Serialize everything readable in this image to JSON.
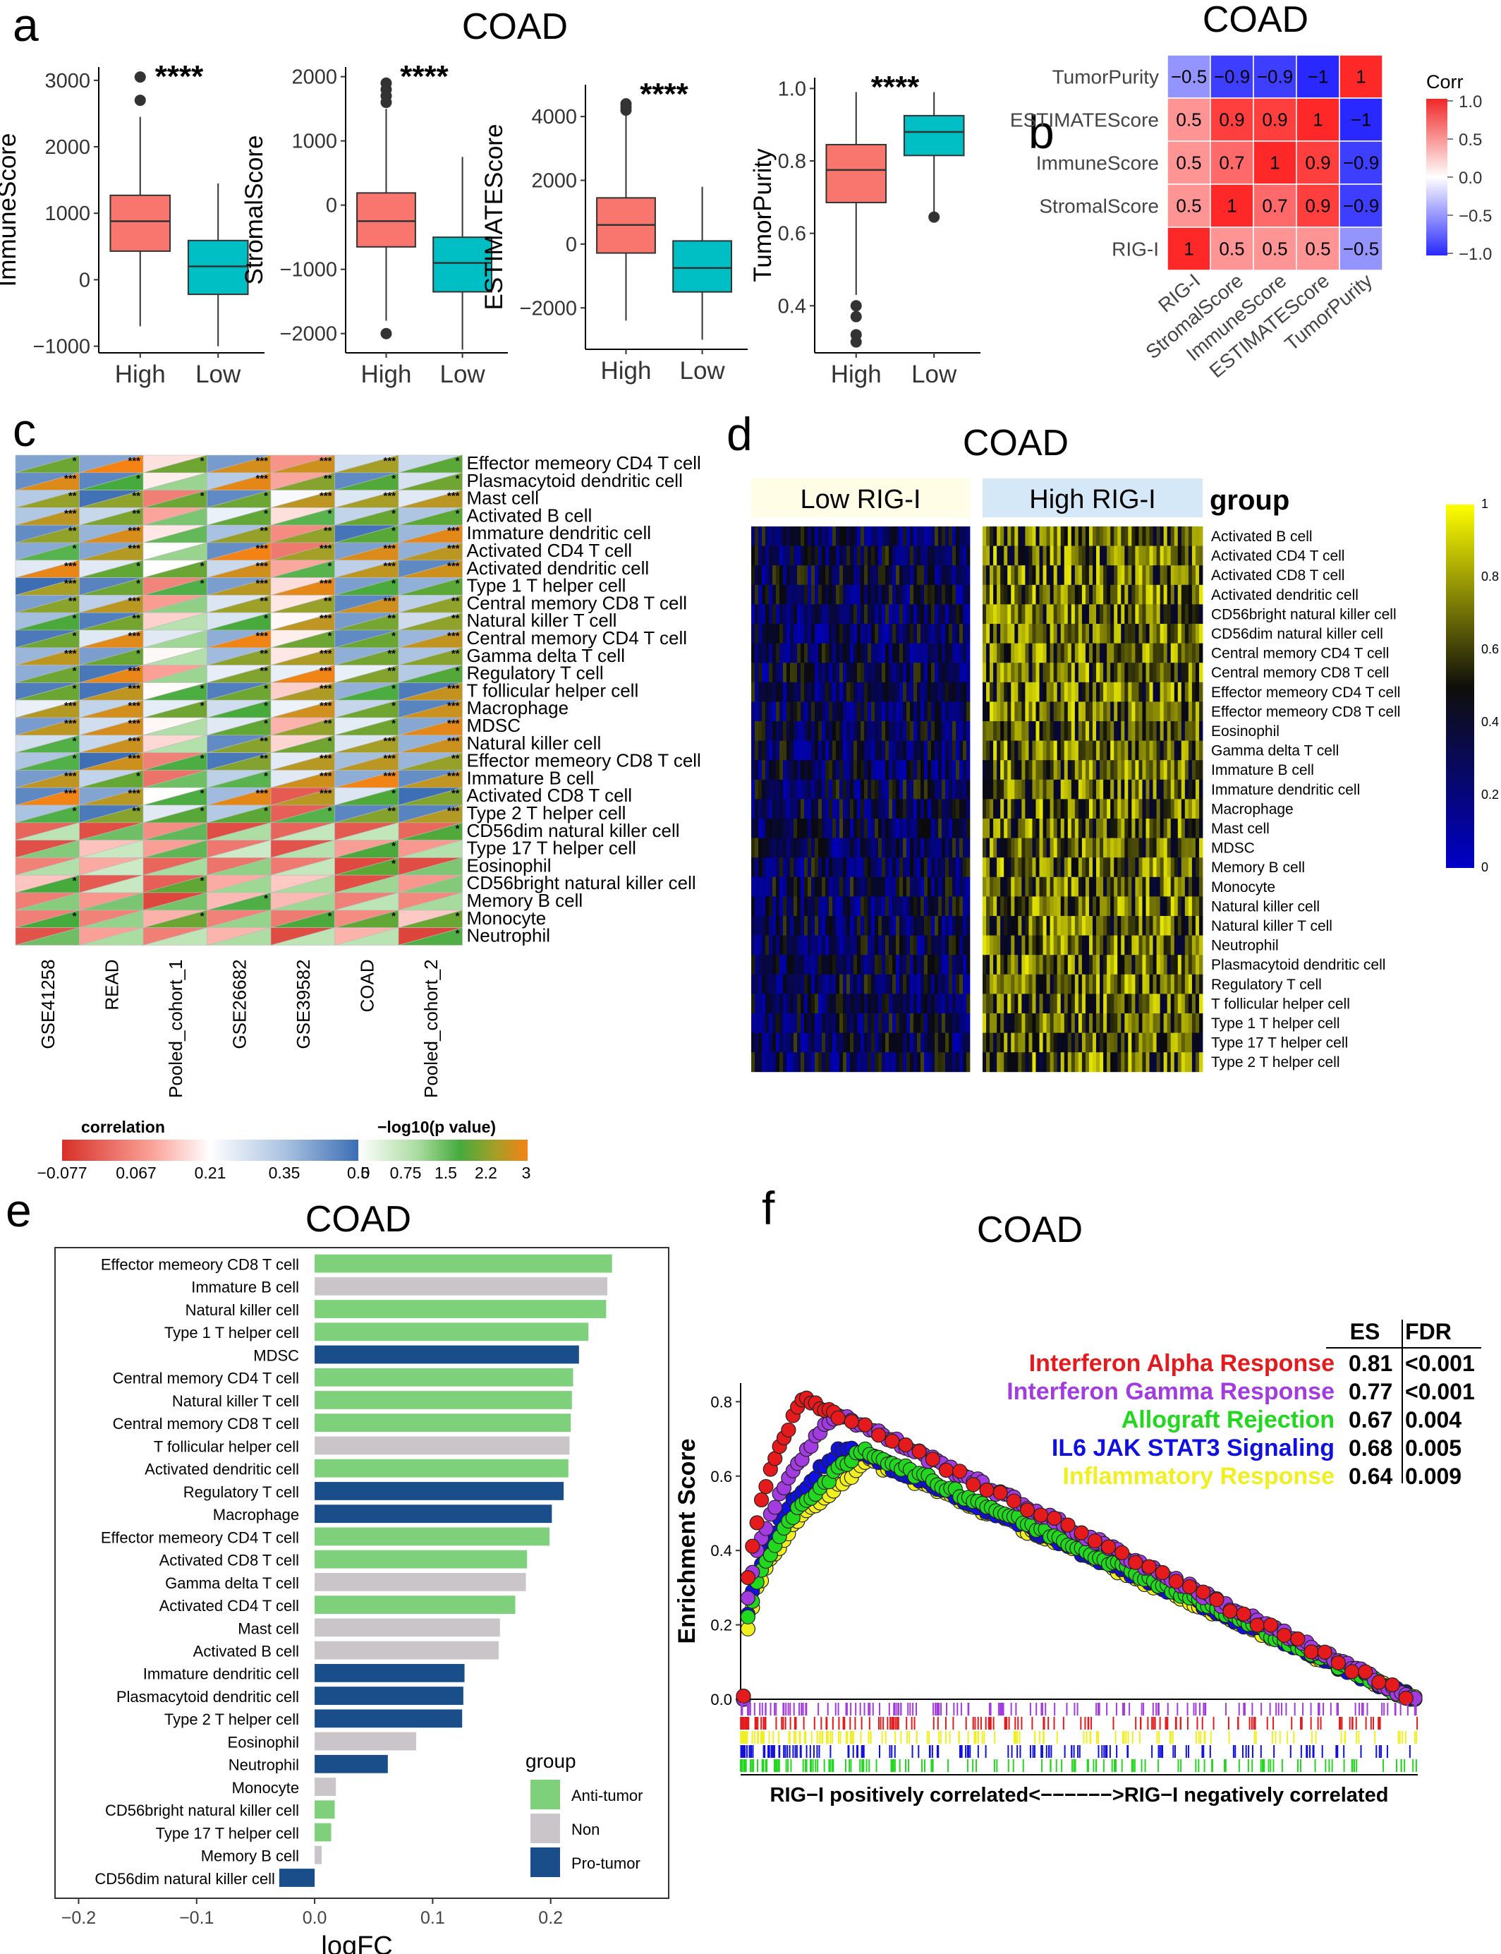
{
  "panels": {
    "a": "a",
    "b": "b",
    "c": "c",
    "d": "d",
    "e": "e",
    "f": "f"
  },
  "panel_a": {
    "title": "COAD",
    "categories": [
      "High",
      "Low"
    ],
    "colors": [
      "#F8766D",
      "#00BFC4"
    ],
    "sig": "****",
    "plots": [
      {
        "ylabel": "ImmuneScore",
        "ylim": [
          -1100,
          3200
        ],
        "ticks": [
          -1000,
          0,
          1000,
          2000,
          3000
        ],
        "tick_labels": [
          "−1000",
          "0",
          "1000",
          "2000",
          "3000"
        ],
        "boxes": [
          {
            "q1": 430,
            "med": 880,
            "q3": 1270,
            "lo": -700,
            "hi": 2450
          },
          {
            "q1": -220,
            "med": 200,
            "q3": 590,
            "lo": -1000,
            "hi": 1450
          }
        ],
        "outliers": [
          [
            3050,
            2700
          ],
          []
        ]
      },
      {
        "ylabel": "StromalScore",
        "ylim": [
          -2300,
          2150
        ],
        "ticks": [
          -2000,
          -1000,
          0,
          1000,
          2000
        ],
        "tick_labels": [
          "−2000",
          "−1000",
          "0",
          "1000",
          "2000"
        ],
        "boxes": [
          {
            "q1": -650,
            "med": -250,
            "q3": 190,
            "lo": -1800,
            "hi": 1500
          },
          {
            "q1": -1350,
            "med": -900,
            "q3": -500,
            "lo": -2250,
            "hi": 750
          }
        ],
        "outliers": [
          [
            -2000,
            1900,
            1800,
            1700,
            1600
          ],
          []
        ]
      },
      {
        "ylabel": "ESTIMATEScore",
        "ylim": [
          -3300,
          5000
        ],
        "ticks": [
          -2000,
          0,
          2000,
          4000
        ],
        "tick_labels": [
          "−2000",
          "0",
          "2000",
          "4000"
        ],
        "boxes": [
          {
            "q1": -280,
            "med": 600,
            "q3": 1450,
            "lo": -2400,
            "hi": 4100
          },
          {
            "q1": -1500,
            "med": -750,
            "q3": 100,
            "lo": -3000,
            "hi": 1800
          }
        ],
        "outliers": [
          [
            4400,
            4300,
            4200
          ],
          []
        ]
      },
      {
        "ylabel": "TumorPurity",
        "ylim": [
          0.27,
          1.03
        ],
        "ticks": [
          0.4,
          0.6,
          0.8,
          1.0
        ],
        "tick_labels": [
          "0.4",
          "0.6",
          "0.8",
          "1.0"
        ],
        "boxes": [
          {
            "q1": 0.685,
            "med": 0.775,
            "q3": 0.845,
            "lo": 0.43,
            "hi": 0.99
          },
          {
            "q1": 0.815,
            "med": 0.88,
            "q3": 0.925,
            "lo": 0.66,
            "hi": 0.99
          }
        ],
        "outliers": [
          [
            0.4,
            0.37,
            0.32,
            0.3
          ],
          [
            0.645
          ]
        ]
      }
    ]
  },
  "panel_b": {
    "title": "COAD",
    "rows": [
      "TumorPurity",
      "ESTIMATEScore",
      "ImmuneScore",
      "StromalScore",
      "RIG-I"
    ],
    "cols": [
      "RIG-I",
      "StromalScore",
      "ImmuneScore",
      "ESTIMATEScore",
      "TumorPurity"
    ],
    "values": [
      [
        -0.5,
        -0.9,
        -0.9,
        -1,
        1
      ],
      [
        0.5,
        0.9,
        0.9,
        1,
        -1
      ],
      [
        0.5,
        0.7,
        1,
        0.9,
        -0.9
      ],
      [
        0.5,
        1,
        0.7,
        0.9,
        -0.9
      ],
      [
        1,
        0.5,
        0.5,
        0.5,
        -0.5
      ]
    ],
    "labels": [
      [
        "−0.5",
        "−0.9",
        "−0.9",
        "−1",
        "1"
      ],
      [
        "0.5",
        "0.9",
        "0.9",
        "1",
        "−1"
      ],
      [
        "0.5",
        "0.7",
        "1",
        "0.9",
        "−0.9"
      ],
      [
        "0.5",
        "1",
        "0.7",
        "0.9",
        "−0.9"
      ],
      [
        "1",
        "0.5",
        "0.5",
        "0.5",
        "−0.5"
      ]
    ],
    "legend_title": "Corr",
    "legend_ticks": [
      "1.0",
      "0.5",
      "0.0",
      "−0.5",
      "−1.0"
    ]
  },
  "panel_c": {
    "rows": [
      "Effector memeory CD4 T cell",
      "Plasmacytoid dendritic cell",
      "Mast cell",
      "Activated B cell",
      "Immature dendritic cell",
      "Activated CD4 T cell",
      "Activated dendritic cell",
      "Type 1 T helper cell",
      "Central memory CD8 T cell",
      "Natural killer T cell",
      "Central memory CD4 T cell",
      "Gamma delta T cell",
      "Regulatory T cell",
      "T follicular helper cell",
      "Macrophage",
      "MDSC",
      "Natural killer cell",
      "Effector memeory CD8 T cell",
      "Immature  B cell",
      "Activated CD8 T cell",
      "Type 2 T helper cell",
      "CD56dim natural killer cell",
      "Type 17 T helper cell",
      "Eosinophil",
      "CD56bright natural killer cell",
      "Memory B cell",
      "Monocyte",
      "Neutrophil"
    ],
    "cols": [
      "GSE41258",
      "READ",
      "Pooled_cohort_1",
      "GSE26682",
      "GSE39582",
      "COAD",
      "Pooled_cohort_2"
    ],
    "legend_corr_title": "correlation",
    "legend_corr_ticks": [
      "−0.077",
      "0.067",
      "0.21",
      "0.35",
      "0.5"
    ],
    "legend_p_title": "−log10(p value)",
    "legend_p_ticks": [
      "0",
      "0.75",
      "1.5",
      "2.2",
      "3"
    ]
  },
  "panel_d": {
    "title": "COAD",
    "groups": [
      "Low RIG-I",
      "High RIG-I"
    ],
    "group_label": "group",
    "rows": [
      "Activated B cell",
      "Activated CD4 T cell",
      "Activated CD8 T cell",
      "Activated dendritic cell",
      "CD56bright natural killer cell",
      "CD56dim natural killer cell",
      "Central memory CD4 T cell",
      "Central memory CD8 T cell",
      "Effector memeory CD4 T cell",
      "Effector memeory CD8 T cell",
      "Eosinophil",
      "Gamma delta T cell",
      "Immature  B cell",
      "Immature dendritic cell",
      "Macrophage",
      "Mast cell",
      "MDSC",
      "Memory B cell",
      "Monocyte",
      "Natural killer cell",
      "Natural killer T cell",
      "Neutrophil",
      "Plasmacytoid dendritic cell",
      "Regulatory T cell",
      "T follicular helper cell",
      "Type 1 T helper cell",
      "Type 17 T helper cell",
      "Type 2 T helper cell"
    ],
    "legend_ticks": [
      "1",
      "0.8",
      "0.6",
      "0.4",
      "0.2",
      "0"
    ]
  },
  "chart_data": [
    {
      "type": "bar",
      "title": "COAD",
      "xlabel": "logFC",
      "xlim": [
        -0.22,
        0.3
      ],
      "x_ticks": [
        "−0.2",
        "−0.1",
        "0.0",
        "0.1",
        "0.2"
      ],
      "legend_title": "group",
      "legend": [
        {
          "name": "Anti-tumor",
          "color": "#7ED17A"
        },
        {
          "name": "Non",
          "color": "#C9C5C8"
        },
        {
          "name": "Pro-tumor",
          "color": "#1A4E8A"
        }
      ],
      "categories": [
        "Effector memeory CD8 T cell",
        "Immature  B cell",
        "Natural killer cell",
        "Type 1 T helper cell",
        "MDSC",
        "Central memory CD4 T cell",
        "Natural killer T cell",
        "Central memory CD8 T cell",
        "T follicular helper cell",
        "Activated dendritic cell",
        "Regulatory T cell",
        "Macrophage",
        "Effector memeory CD4 T cell",
        "Activated CD8 T cell",
        "Gamma delta T cell",
        "Activated CD4 T cell",
        "Mast cell",
        "Activated B cell",
        "Immature dendritic cell",
        "Plasmacytoid dendritic cell",
        "Type 2 T helper cell",
        "Eosinophil",
        "Neutrophil",
        "Monocyte",
        "CD56bright natural killer cell",
        "Type 17 T helper cell",
        "Memory B cell",
        "CD56dim natural killer cell"
      ],
      "values": [
        0.252,
        0.248,
        0.247,
        0.232,
        0.224,
        0.219,
        0.218,
        0.217,
        0.216,
        0.215,
        0.211,
        0.201,
        0.199,
        0.18,
        0.179,
        0.17,
        0.157,
        0.156,
        0.127,
        0.126,
        0.125,
        0.086,
        0.062,
        0.018,
        0.017,
        0.014,
        0.006,
        -0.03
      ],
      "groups": [
        "Anti-tumor",
        "Non",
        "Anti-tumor",
        "Anti-tumor",
        "Pro-tumor",
        "Anti-tumor",
        "Anti-tumor",
        "Anti-tumor",
        "Non",
        "Anti-tumor",
        "Pro-tumor",
        "Pro-tumor",
        "Anti-tumor",
        "Anti-tumor",
        "Non",
        "Anti-tumor",
        "Non",
        "Non",
        "Pro-tumor",
        "Pro-tumor",
        "Pro-tumor",
        "Non",
        "Pro-tumor",
        "Non",
        "Anti-tumor",
        "Anti-tumor",
        "Non",
        "Pro-tumor"
      ]
    },
    {
      "type": "line",
      "title": "COAD",
      "ylabel": "Enrichment Score",
      "xlabel": "RIG−I positively correlated<−−−−−−>RIG−I negatively correlated",
      "ylim": [
        0,
        0.85
      ],
      "y_ticks": [
        "0.0",
        "0.2",
        "0.4",
        "0.6",
        "0.8"
      ],
      "table_headers": [
        "ES",
        "FDR"
      ],
      "series": [
        {
          "name": "Interferon Alpha Response",
          "color": "#E41A1C",
          "es": "0.81",
          "fdr": "<0.001",
          "peak": 0.81,
          "peak_at": 0.09
        },
        {
          "name": "Interferon Gamma Response",
          "color": "#A23BE0",
          "es": "0.77",
          "fdr": "<0.001",
          "peak": 0.77,
          "peak_at": 0.14
        },
        {
          "name": "Allograft Rejection",
          "color": "#22D81E",
          "es": "0.67",
          "fdr": "0.004",
          "peak": 0.67,
          "peak_at": 0.18
        },
        {
          "name": "IL6 JAK STAT3 Signaling",
          "color": "#1010E0",
          "es": "0.68",
          "fdr": "0.005",
          "peak": 0.68,
          "peak_at": 0.15
        },
        {
          "name": "Inflammatory Response",
          "color": "#F0F020",
          "es": "0.64",
          "fdr": "0.009",
          "peak": 0.64,
          "peak_at": 0.19
        }
      ]
    }
  ]
}
